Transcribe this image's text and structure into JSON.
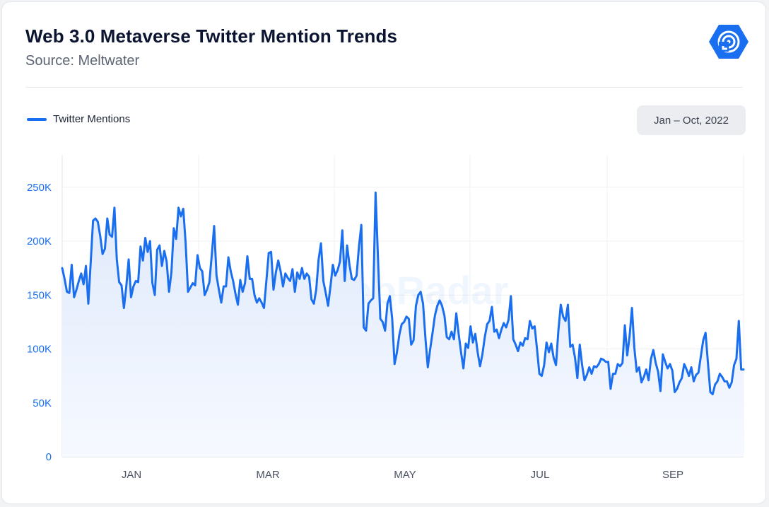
{
  "header": {
    "title": "Web 3.0 Metaverse Twitter Mention Trends",
    "subtitle": "Source: Meltwater",
    "date_range": "Jan – Oct, 2022"
  },
  "watermark": "DappRadar",
  "logo_icon": "dappradar-logo-icon",
  "colors": {
    "line": "#1a6ff0",
    "fill_top": "#dfe9fb",
    "fill_bottom": "#f6f9ff",
    "axis_tick": "#1a6ff0"
  },
  "chart_data": {
    "type": "area",
    "series": [
      {
        "name": "Twitter Mentions",
        "values": [
          175000,
          165000,
          153000,
          152000,
          178000,
          148000,
          155000,
          163000,
          170000,
          160000,
          177000,
          142000,
          180000,
          219000,
          221000,
          218000,
          205000,
          188000,
          193000,
          221000,
          206000,
          204000,
          231000,
          183000,
          162000,
          159000,
          138000,
          158000,
          183000,
          148000,
          158000,
          163000,
          162000,
          195000,
          182000,
          203000,
          190000,
          200000,
          161000,
          150000,
          192000,
          196000,
          177000,
          191000,
          181000,
          153000,
          171000,
          212000,
          202000,
          231000,
          223000,
          230000,
          198000,
          153000,
          157000,
          161000,
          159000,
          187000,
          175000,
          172000,
          150000,
          155000,
          162000,
          187000,
          214000,
          168000,
          155000,
          143000,
          158000,
          158000,
          185000,
          172000,
          163000,
          151000,
          141000,
          164000,
          153000,
          161000,
          186000,
          165000,
          165000,
          150000,
          143000,
          147000,
          143000,
          138000,
          163000,
          189000,
          190000,
          155000,
          171000,
          182000,
          172000,
          158000,
          170000,
          166000,
          163000,
          174000,
          153000,
          171000,
          165000,
          175000,
          165000,
          170000,
          167000,
          146000,
          142000,
          155000,
          183000,
          198000,
          163000,
          152000,
          140000,
          158000,
          178000,
          168000,
          173000,
          181000,
          210000,
          163000,
          196000,
          178000,
          165000,
          164000,
          168000,
          195000,
          215000,
          120000,
          117000,
          142000,
          145000,
          147000,
          245000,
          185000,
          128000,
          125000,
          117000,
          142000,
          149000,
          128000,
          86000,
          97000,
          113000,
          123000,
          125000,
          130000,
          128000,
          104000,
          108000,
          140000,
          150000,
          153000,
          142000,
          110000,
          83000,
          100000,
          115000,
          131000,
          140000,
          145000,
          140000,
          131000,
          111000,
          109000,
          116000,
          109000,
          133000,
          114000,
          97000,
          82000,
          105000,
          101000,
          121000,
          106000,
          114000,
          97000,
          84000,
          95000,
          111000,
          123000,
          126000,
          139000,
          116000,
          118000,
          110000,
          118000,
          124000,
          120000,
          127000,
          149000,
          109000,
          104000,
          98000,
          106000,
          103000,
          110000,
          109000,
          126000,
          119000,
          121000,
          100000,
          77000,
          75000,
          85000,
          106000,
          97000,
          105000,
          92000,
          85000,
          117000,
          141000,
          130000,
          126000,
          141000,
          102000,
          104000,
          92000,
          73000,
          104000,
          85000,
          71000,
          76000,
          83000,
          77000,
          84000,
          83000,
          86000,
          91000,
          90000,
          88000,
          88000,
          63000,
          77000,
          77000,
          86000,
          84000,
          87000,
          122000,
          94000,
          112000,
          138000,
          101000,
          79000,
          83000,
          69000,
          74000,
          81000,
          71000,
          91000,
          99000,
          87000,
          79000,
          61000,
          95000,
          88000,
          82000,
          86000,
          80000,
          60000,
          63000,
          69000,
          73000,
          86000,
          81000,
          75000,
          83000,
          70000,
          76000,
          78000,
          93000,
          108000,
          115000,
          87000,
          60000,
          58000,
          67000,
          70000,
          77000,
          74000,
          70000,
          70000,
          64000,
          69000,
          85000,
          91000,
          126000,
          81000,
          81000
        ]
      }
    ],
    "x_ticks": [
      "JAN",
      "MAR",
      "MAY",
      "JUL",
      "SEP"
    ],
    "y_ticks": [
      {
        "value": 0,
        "label": "0"
      },
      {
        "value": 50000,
        "label": "50K"
      },
      {
        "value": 100000,
        "label": "100K"
      },
      {
        "value": 150000,
        "label": "150K"
      },
      {
        "value": 200000,
        "label": "200K"
      },
      {
        "value": 250000,
        "label": "250K"
      }
    ],
    "ylim": [
      0,
      280000
    ],
    "grid": true,
    "legend": "top-left"
  }
}
